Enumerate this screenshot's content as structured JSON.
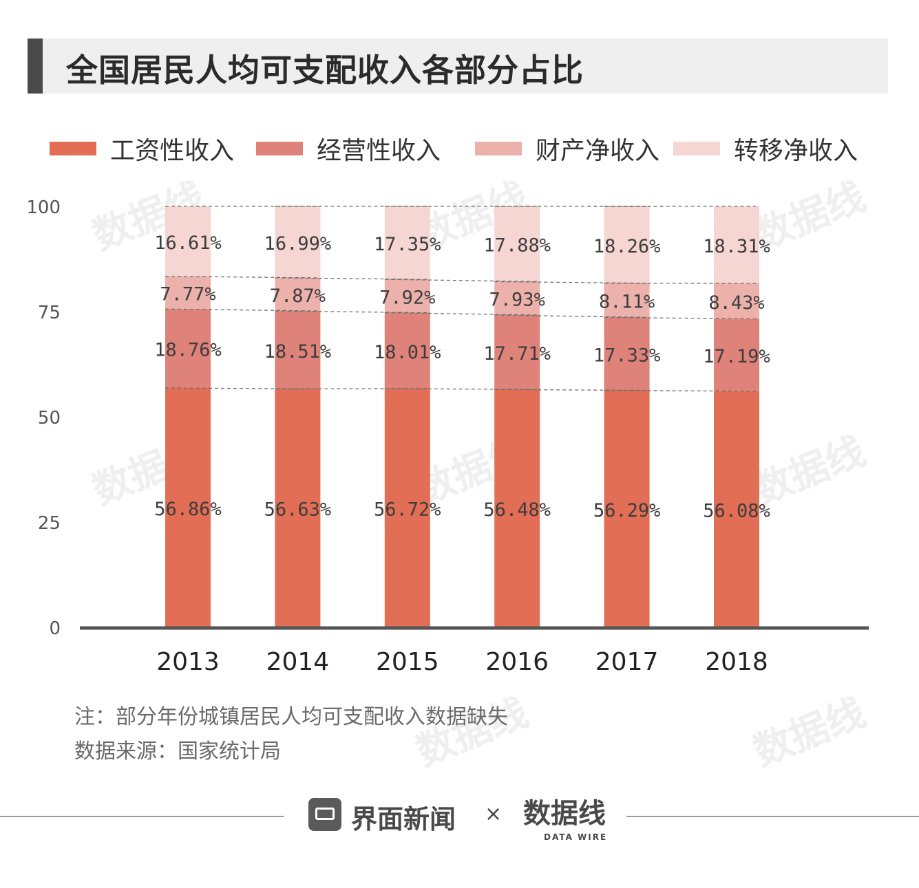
{
  "title": "全国居民人均可支配收入各部分占比",
  "legend": [
    {
      "label": "工资性收入",
      "color": "#e16e55"
    },
    {
      "label": "经营性收入",
      "color": "#de827a"
    },
    {
      "label": "财产净收入",
      "color": "#ebb1aa"
    },
    {
      "label": "转移净收入",
      "color": "#f6d6d3"
    }
  ],
  "chart_data": {
    "type": "bar",
    "stacked": true,
    "categories": [
      "2013",
      "2014",
      "2015",
      "2016",
      "2017",
      "2018"
    ],
    "series": [
      {
        "name": "工资性收入",
        "values": [
          56.86,
          56.63,
          56.72,
          56.48,
          56.29,
          56.08
        ],
        "labels": [
          "56.86%",
          "56.63%",
          "56.72%",
          "56.48%",
          "56.29%",
          "56.08%"
        ]
      },
      {
        "name": "经营性收入",
        "values": [
          18.76,
          18.51,
          18.01,
          17.71,
          17.33,
          17.19
        ],
        "labels": [
          "18.76%",
          "18.51%",
          "18.01%",
          "17.71%",
          "17.33%",
          "17.19%"
        ]
      },
      {
        "name": "财产净收入",
        "values": [
          7.77,
          7.87,
          7.92,
          7.93,
          8.11,
          8.43
        ],
        "labels": [
          "7.77%",
          "7.87%",
          "7.92%",
          "7.93%",
          "8.11%",
          "8.43%"
        ]
      },
      {
        "name": "转移净收入",
        "values": [
          16.61,
          16.99,
          17.35,
          17.88,
          18.26,
          18.31
        ],
        "labels": [
          "16.61%",
          "16.99%",
          "17.35%",
          "17.88%",
          "18.26%",
          "18.31%"
        ]
      }
    ],
    "y_ticks": [
      "0",
      "25",
      "50",
      "75",
      "100"
    ],
    "ylim": [
      0,
      100
    ],
    "grid": false,
    "legend_position": "top"
  },
  "notes": {
    "line1": "注：部分年份城镇居民人均可支配收入数据缺失",
    "line2": "数据来源：国家统计局"
  },
  "footer": {
    "brand": "界面新闻",
    "separator": "×",
    "partner": "数据线",
    "partner_sub": "DATA WIRE"
  },
  "watermark": "数据线"
}
